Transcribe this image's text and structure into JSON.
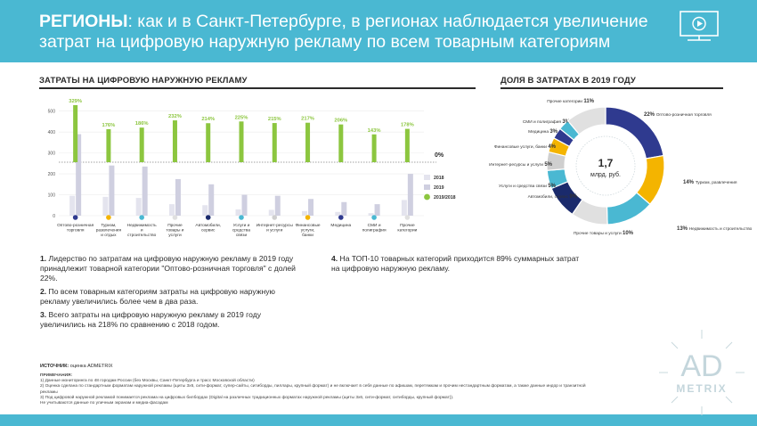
{
  "header": {
    "title_bold": "РЕГИОНЫ",
    "title_rest": ": как и в Санкт-Петербурге, в регионах наблюдается увеличение затрат на цифровую наружную рекламу по всем товарным категориям"
  },
  "left_section": {
    "title": "ЗАТРАТЫ НА ЦИФРОВУЮ НАРУЖНУЮ РЕКЛАМУ"
  },
  "right_section": {
    "title": "ДОЛЯ В ЗАТРАТАХ В 2019 ГОДУ"
  },
  "chart_data": [
    {
      "type": "bar",
      "title": "ЗАТРАТЫ НА ЦИФРОВУЮ НАРУЖНУЮ РЕКЛАМУ",
      "categories": [
        "Оптово-розничная торговля",
        "Туризм, развлечения и отдых",
        "Недвижимость и строительство",
        "Прочие товары и услуги",
        "Автомобили, сервис",
        "Услуги и средства связи",
        "Интернет-ресурсы и услуги",
        "Финансовые услуги, банки",
        "Медицина",
        "СМИ и полиграфия",
        "Прочие категории"
      ],
      "y_ticks": [
        "0",
        "100",
        "200",
        "300",
        "400",
        "500"
      ],
      "ylim": [
        0,
        520
      ],
      "series": [
        {
          "name": "2018",
          "color": "#e4e4ee",
          "values": [
            95,
            90,
            85,
            55,
            50,
            30,
            28,
            22,
            18,
            12,
            75
          ]
        },
        {
          "name": "2019",
          "color": "#cfcfe0",
          "values": [
            390,
            240,
            235,
            175,
            150,
            100,
            95,
            80,
            65,
            55,
            200
          ]
        }
      ],
      "growth": {
        "name": "2019/2018",
        "color": "#8cc63f",
        "labels": [
          "329%",
          "176%",
          "186%",
          "232%",
          "214%",
          "225%",
          "215%",
          "217%",
          "206%",
          "143%",
          "178%"
        ],
        "values": [
          329,
          176,
          186,
          232,
          214,
          225,
          215,
          217,
          206,
          143,
          178
        ],
        "zero_label": "0%"
      },
      "legend": [
        "2018",
        "2019",
        "2019/2018"
      ],
      "legend_position": "right",
      "category_colors": [
        "#2f3a8f",
        "#f4b400",
        "#4ab8d2",
        "#e0e0e0",
        "#1a2a6c",
        "#4ab8d2",
        "#cfcfcf",
        "#f4b400",
        "#2f3a8f",
        "#4ab8d2",
        "#e0e0e0"
      ]
    },
    {
      "type": "pie",
      "title": "ДОЛЯ В ЗАТРАТАХ В 2019 ГОДУ",
      "center_value": "1,7",
      "center_unit": "млрд. руб.",
      "categories": [
        "Оптово-розничная торговля",
        "Туризм, развлечения",
        "Недвижимость и строительство",
        "Прочие товары и услуги",
        "Автомобили, сервис",
        "Услуги и средства связи",
        "Интернет-ресурсы и услуги",
        "Финансовые услуги, банки",
        "Медицина",
        "СМИ и полиграфия",
        "Прочие категории"
      ],
      "values": [
        22,
        14,
        13,
        10,
        9,
        5,
        5,
        4,
        3,
        3,
        11
      ],
      "labels": [
        "22%",
        "14%",
        "13%",
        "10%",
        "9%",
        "5%",
        "5%",
        "4%",
        "3%",
        "3%",
        "11%"
      ],
      "colors": [
        "#2f3a8f",
        "#f4b400",
        "#4ab8d2",
        "#e0e0e0",
        "#1a2a6c",
        "#4ab8d2",
        "#cfcfcf",
        "#f4b400",
        "#2f3a8f",
        "#4ab8d2",
        "#e0e0e0"
      ]
    }
  ],
  "facts": {
    "f1_num": "1.",
    "f1_text": " Лидерство по затратам на цифровую наружную рекламу в 2019 году принадлежит товарной категории \"Оптово-розничная торговля\" с долей 22%.",
    "f2_num": "2.",
    "f2_text": " По всем товарным категориям затраты на цифровую наружную рекламу увеличились более чем в два раза.",
    "f3_num": "3.",
    "f3_text": " Всего затраты на цифровую наружную рекламу в 2019 году увеличились на 218% по сравнению с 2018 годом.",
    "f4_num": "4.",
    "f4_text": " На ТОП-10 товарных категорий приходится 89% суммарных затрат на цифровую наружную рекламу."
  },
  "source": {
    "label": "ИСТОЧНИК:",
    "text": " оценка ADMETRIX"
  },
  "notes": {
    "title": "ПРИМЕЧАНИЯ:",
    "n1": "1) Данные мониторинга по 48 городам России (без Москвы, Санкт-Петербурга и трасс Московской области)",
    "n2": "2) Оценка сделана по стандартным форматам наружной рекламы (щиты 3х6, сити-формат, супер-сайты, ситиборды, пиллары, крупный формат) и не включает в себя данные по афишам, перетяжкам и прочим нестандартным форматам, а также данные индор и транзитной рекламы",
    "n3": "3) Под цифровой наружной рекламой понимается реклама на цифровых билбордах (Digital на различных традиционных форматах наружной рекламы (щиты 3х6, сити-формат, ситиборды, крупный формат)).",
    "n4": "Не учитываются данные по уличным экранам и медиа-фасадам"
  },
  "logo": {
    "line1": "AD",
    "line2": "METRIX"
  }
}
